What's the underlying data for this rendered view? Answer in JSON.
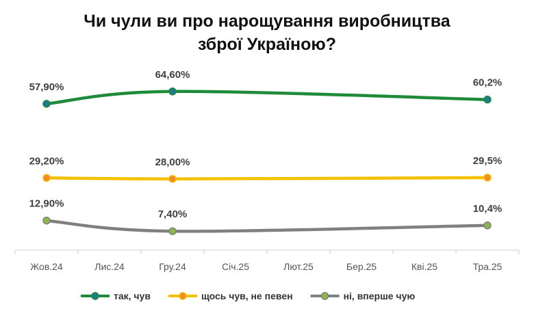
{
  "chart_data": {
    "type": "line",
    "title_line1": "Чи чули ви про нарощування виробництва",
    "title_line2": "зброї Україною?",
    "categories": [
      "Жов.24",
      "Лис.24",
      "Гру.24",
      "Січ.25",
      "Лют.25",
      "Бер.25",
      "Кві.25",
      "Тра.25"
    ],
    "series": [
      {
        "name": "так, чув",
        "color": "#1e8a3a",
        "marker_fill": "#1e7c8c",
        "points": [
          {
            "category": "Жов.24",
            "value": 57.9,
            "label": "57,90%"
          },
          {
            "category": "Гру.24",
            "value": 64.6,
            "label": "64,60%"
          },
          {
            "category": "Тра.25",
            "value": 60.2,
            "label": "60,2%"
          }
        ]
      },
      {
        "name": "щось чув, не певен",
        "color": "#f5c000",
        "marker_fill": "#f28c28",
        "points": [
          {
            "category": "Жов.24",
            "value": 29.2,
            "label": "29,20%"
          },
          {
            "category": "Гру.24",
            "value": 28.0,
            "label": "28,00%"
          },
          {
            "category": "Тра.25",
            "value": 29.5,
            "label": "29,5%"
          }
        ]
      },
      {
        "name": "ні, вперше чую",
        "color": "#808080",
        "marker_fill": "#8db84a",
        "points": [
          {
            "category": "Жов.24",
            "value": 12.9,
            "label": "12,90%"
          },
          {
            "category": "Гру.24",
            "value": 7.4,
            "label": "7,40%"
          },
          {
            "category": "Тра.25",
            "value": 10.4,
            "label": "10,4%"
          }
        ]
      }
    ],
    "grid": false,
    "legend_position": "bottom"
  }
}
